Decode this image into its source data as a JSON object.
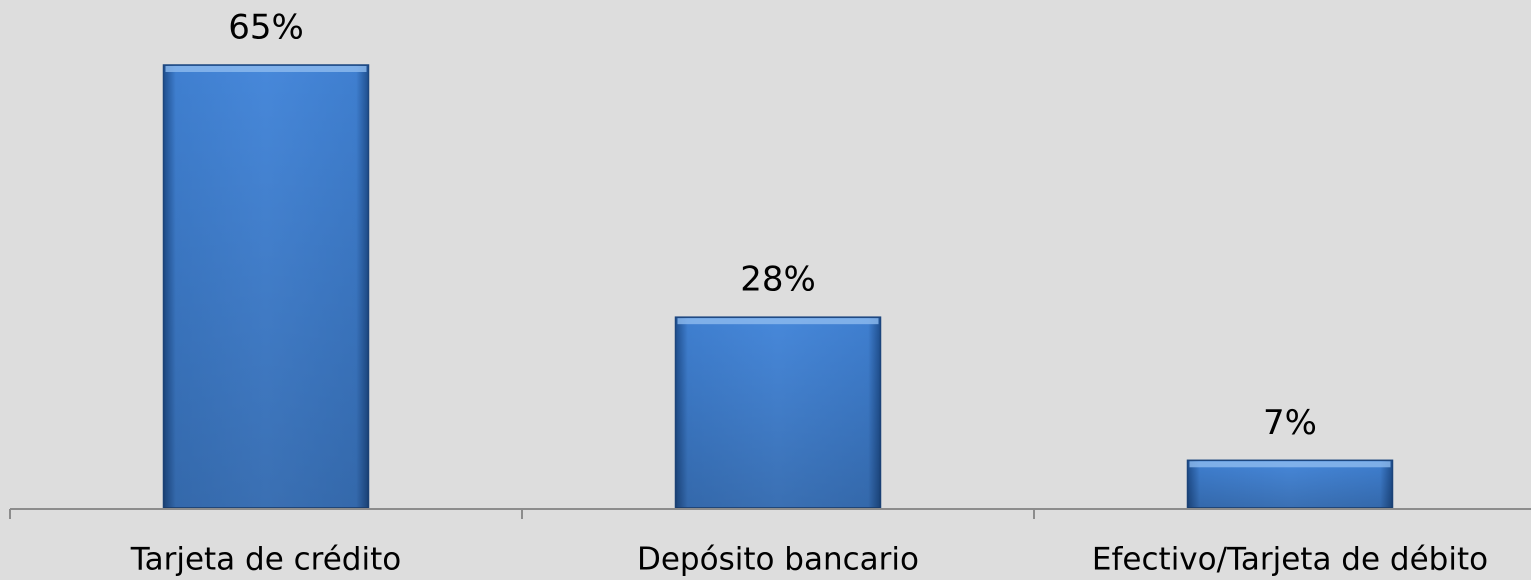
{
  "chart_data": {
    "type": "bar",
    "categories": [
      "Tarjeta de crédito",
      "Depósito bancario",
      "Efectivo/Tarjeta de débito"
    ],
    "values": [
      65,
      28,
      7
    ],
    "value_labels": [
      "65%",
      "28%",
      "7%"
    ],
    "color": "#4a86d4",
    "grid": false
  }
}
